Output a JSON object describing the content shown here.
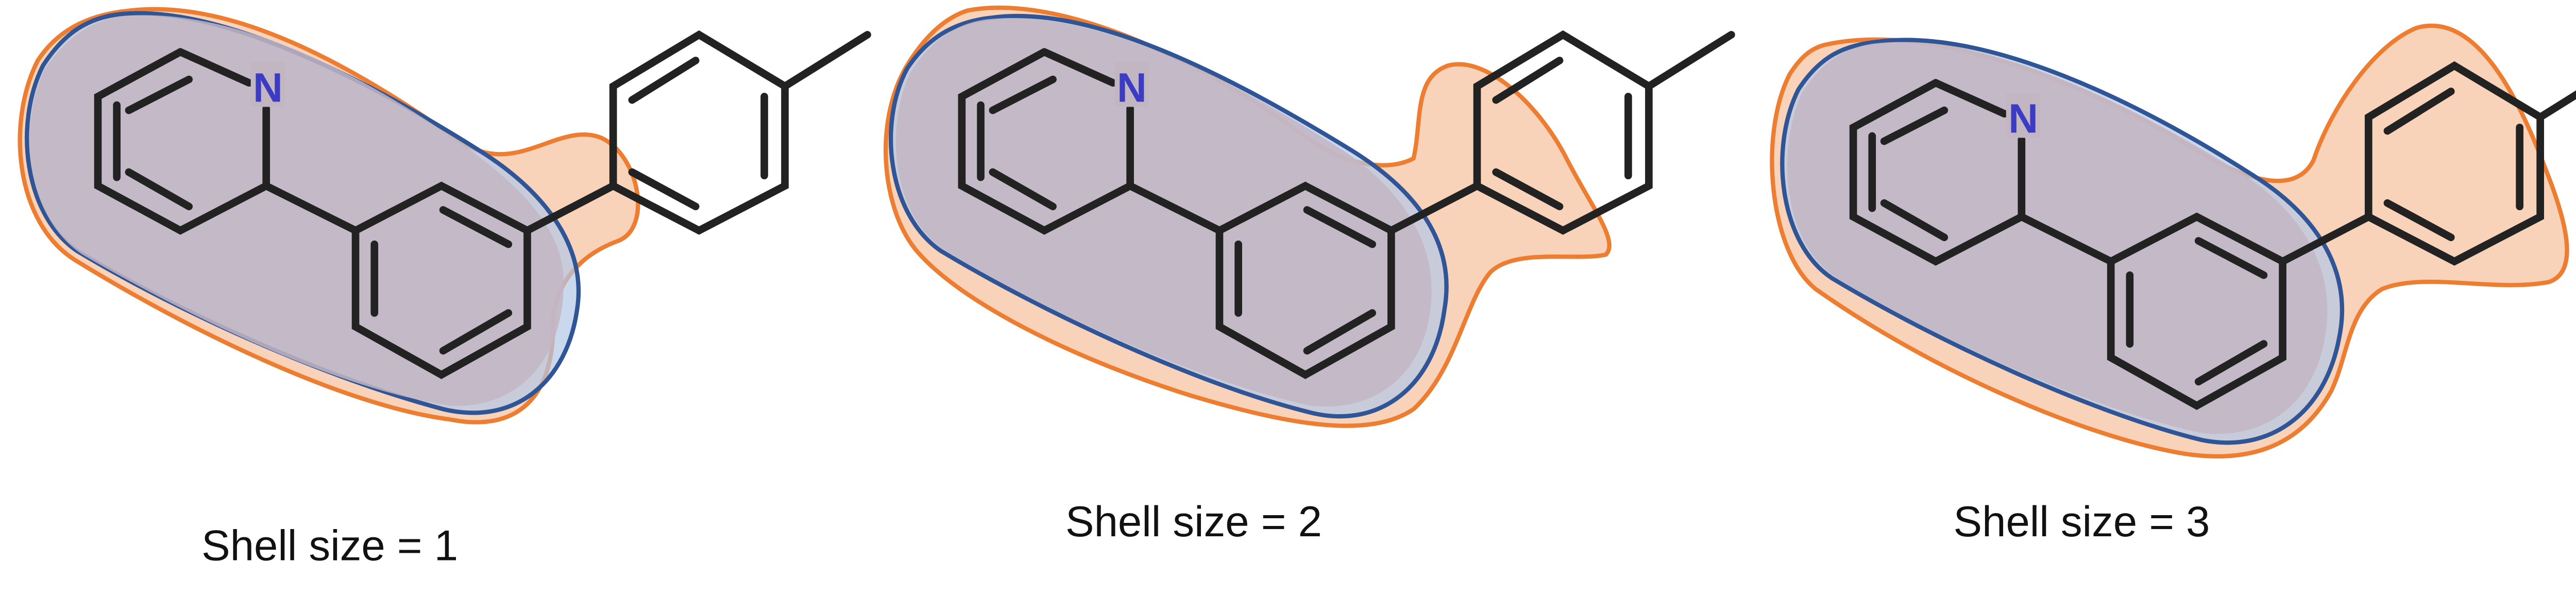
{
  "panels": [
    {
      "caption": "Shell size = 1",
      "atom_label": "N"
    },
    {
      "caption": "Shell size = 2",
      "atom_label": "N"
    },
    {
      "caption": "Shell size = 3",
      "atom_label": "N"
    }
  ],
  "colors": {
    "bond": "#222222",
    "nitrogen": "#3b3bc4",
    "orange_stroke": "#ed7d31",
    "orange_fill": "#f8cbad",
    "blue_stroke": "#2f5597",
    "blue_fill": "#b4c7e7",
    "overlap_fill": "#c3b6c3",
    "caption": "#111111"
  }
}
